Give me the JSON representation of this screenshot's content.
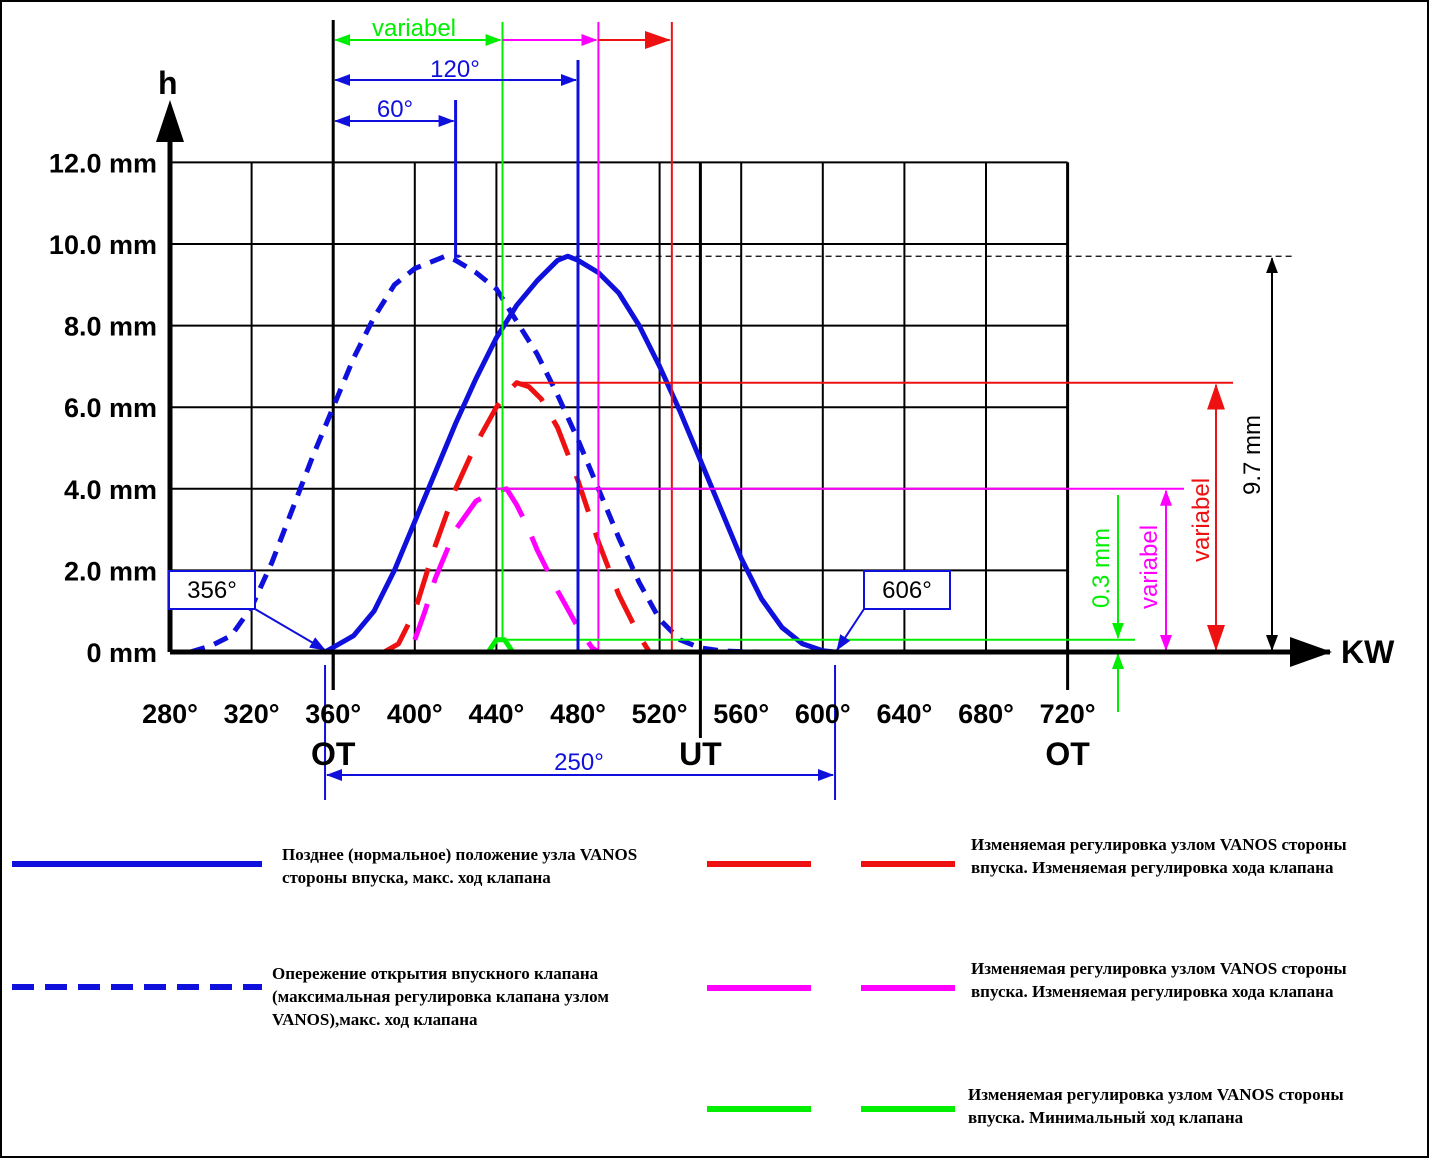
{
  "chart_data": {
    "type": "line",
    "ylabel": "h",
    "xlabel": "KW",
    "x_ticks": [
      "280°",
      "320°",
      "360°",
      "400°",
      "440°",
      "480°",
      "520°",
      "560°",
      "600°",
      "640°",
      "680°",
      "720°"
    ],
    "y_ticks": [
      "0 mm",
      "2.0 mm",
      "4.0 mm",
      "6.0 mm",
      "8.0 mm",
      "10.0 mm",
      "12.0 mm"
    ],
    "xlim": [
      280,
      720
    ],
    "ylim": [
      0,
      12
    ],
    "grid": true,
    "dead_centers": [
      {
        "x": 360,
        "label": "OT"
      },
      {
        "x": 540,
        "label": "UT"
      },
      {
        "x": 720,
        "label": "OT"
      }
    ],
    "series": [
      {
        "legend": "Позднее (нормальное) положение узла VANOS стороны впуска, макс. ход клапана",
        "color": "#1010dd",
        "style": "solid",
        "x": [
          356,
          370,
          380,
          390,
          400,
          410,
          420,
          430,
          440,
          450,
          460,
          470,
          475,
          480,
          490,
          500,
          510,
          520,
          530,
          540,
          550,
          560,
          570,
          580,
          590,
          600,
          606
        ],
        "y": [
          0.0,
          0.4,
          1.0,
          2.0,
          3.2,
          4.4,
          5.6,
          6.7,
          7.7,
          8.5,
          9.1,
          9.6,
          9.7,
          9.6,
          9.3,
          8.8,
          8.0,
          7.0,
          5.9,
          4.7,
          3.5,
          2.3,
          1.3,
          0.6,
          0.2,
          0.03,
          0.0
        ]
      },
      {
        "legend": "Опережение открытия впускного клапана (максимальная регулировка клапана узлом VANOS),макс. ход клапана",
        "color": "#1010dd",
        "style": "dashed",
        "x": [
          290,
          300,
          310,
          320,
          330,
          340,
          350,
          360,
          370,
          380,
          390,
          400,
          410,
          415,
          420,
          430,
          440,
          450,
          460,
          470,
          480,
          490,
          500,
          510,
          520,
          530,
          540,
          550,
          560,
          570
        ],
        "y": [
          0.0,
          0.15,
          0.4,
          1.1,
          2.2,
          3.5,
          4.8,
          6.0,
          7.2,
          8.2,
          9.0,
          9.4,
          9.6,
          9.7,
          9.6,
          9.3,
          8.9,
          8.1,
          7.3,
          6.3,
          5.2,
          4.0,
          2.8,
          1.7,
          0.8,
          0.3,
          0.1,
          0.03,
          0.01,
          0.0
        ]
      },
      {
        "legend": "Изменяемая регулировка узлом VANOS стороны впуска. Изменяемая регулировка хода клапана",
        "color": "#ee1111",
        "style": "long-dash",
        "x": [
          385,
          392,
          400,
          410,
          420,
          430,
          440,
          446,
          450,
          456,
          462,
          470,
          480,
          490,
          500,
          510,
          515
        ],
        "y": [
          0.0,
          0.2,
          1.0,
          2.6,
          4.0,
          5.1,
          6.0,
          6.4,
          6.6,
          6.5,
          6.2,
          5.5,
          4.2,
          2.7,
          1.4,
          0.4,
          0.0
        ]
      },
      {
        "legend": "Изменяемая регулировка узлом VANOS стороны впуска. Изменяемая регулировка хода клапана",
        "color": "#ff00ff",
        "style": "long-dash",
        "x": [
          400,
          405,
          410,
          420,
          430,
          440,
          445,
          450,
          455,
          460,
          470,
          480,
          487,
          490
        ],
        "y": [
          0.3,
          1.0,
          1.8,
          3.0,
          3.7,
          3.95,
          4.0,
          3.6,
          3.1,
          2.5,
          1.5,
          0.6,
          0.1,
          0.0
        ]
      },
      {
        "legend": "Изменяемая регулировка узлом VANOS стороны впуска. Минимальный ход клапана",
        "color": "#00ee00",
        "style": "solid",
        "x": [
          436,
          440,
          444,
          448
        ],
        "y": [
          0.0,
          0.3,
          0.3,
          0.0
        ]
      }
    ],
    "annotations": [
      {
        "text": "variabel",
        "color": "#00ee00",
        "from": 360,
        "to": 443
      },
      {
        "text": "120°",
        "color": "#1010dd",
        "from": 360,
        "to": 480
      },
      {
        "text": "60°",
        "color": "#1010dd",
        "from": 360,
        "to": 420
      },
      {
        "text": "250°",
        "color": "#1010dd",
        "from": 356,
        "to": 606
      },
      {
        "text": "356°",
        "color": "#1010dd",
        "at": 356
      },
      {
        "text": "606°",
        "color": "#1010dd",
        "at": 606
      },
      {
        "text": "9.7 mm",
        "color": "#000000",
        "height": 9.7
      },
      {
        "text": "variabel",
        "color": "#ee1111",
        "height": 6.6
      },
      {
        "text": "variabel",
        "color": "#ff00ff",
        "height": 4.0
      },
      {
        "text": "0.3 mm",
        "color": "#00ee00",
        "height": 0.3
      }
    ],
    "legend_placement": "bottom"
  }
}
